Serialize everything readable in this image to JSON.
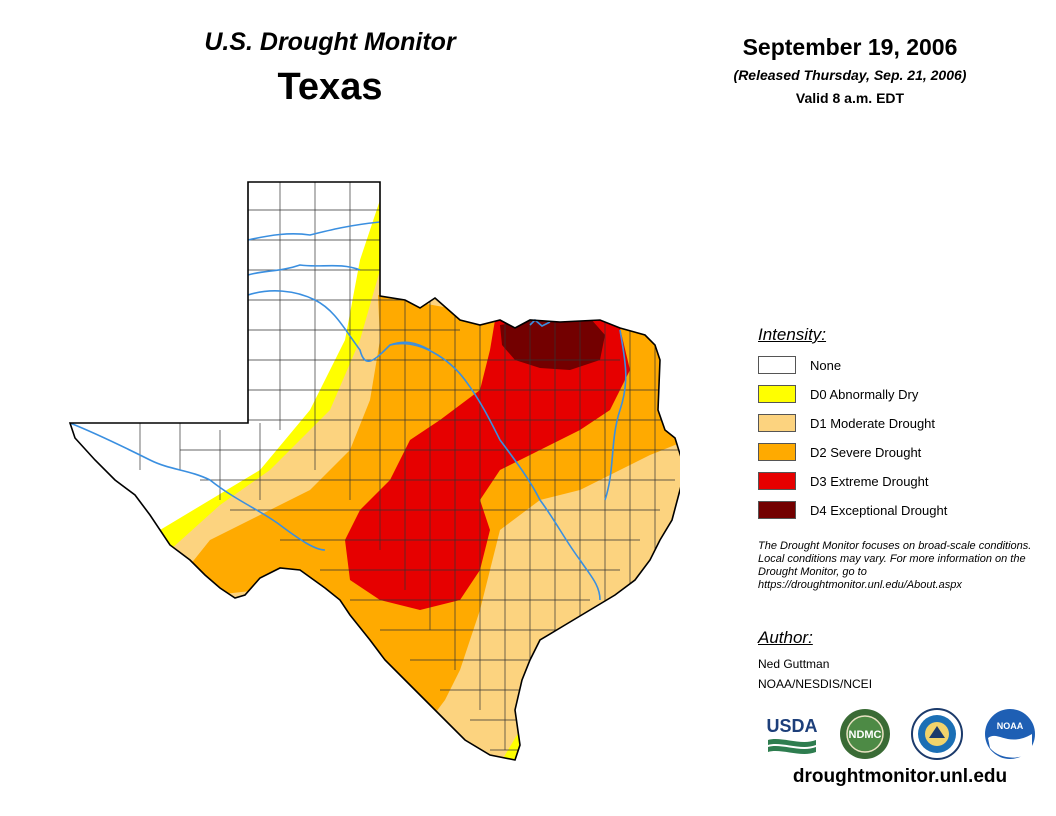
{
  "header": {
    "product": "U.S. Drought Monitor",
    "state": "Texas",
    "date": "September 19, 2006",
    "released": "(Released Thursday, Sep. 21, 2006)",
    "valid": "Valid 8 a.m. EDT"
  },
  "legend": {
    "title": "Intensity:",
    "items": [
      {
        "label": "None",
        "color": "#ffffff"
      },
      {
        "label": "D0 Abnormally Dry",
        "color": "#ffff00"
      },
      {
        "label": "D1 Moderate Drought",
        "color": "#fcd37f"
      },
      {
        "label": "D2 Severe Drought",
        "color": "#ffaa00"
      },
      {
        "label": "D3 Extreme Drought",
        "color": "#e60000"
      },
      {
        "label": "D4 Exceptional Drought",
        "color": "#730000"
      }
    ]
  },
  "note": "The Drought Monitor focuses on broad-scale conditions. Local conditions may vary. For more information on the Drought Monitor, go to https://droughtmonitor.unl.edu/About.aspx",
  "author": {
    "title": "Author:",
    "name": "Ned Guttman",
    "org": "NOAA/NESDIS/NCEI"
  },
  "logos": {
    "usda": "USDA",
    "ndmc": "NDMC",
    "doc_icon": "department-of-commerce-seal-icon",
    "noaa": "NOAA"
  },
  "site_url": "droughtmonitor.unl.edu",
  "map": {
    "river_color": "#3a8fe0",
    "border_color": "#000000",
    "county_color": "#333333"
  }
}
